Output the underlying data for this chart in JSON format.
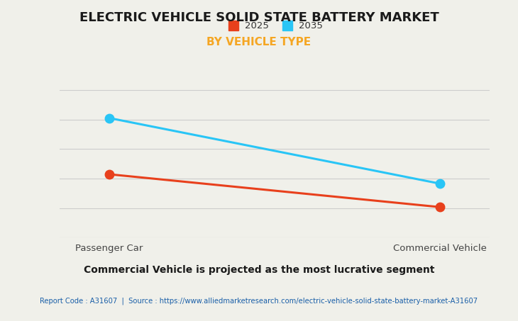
{
  "title": "ELECTRIC VEHICLE SOLID STATE BATTERY MARKET",
  "subtitle": "BY VEHICLE TYPE",
  "categories": [
    "Passenger Car",
    "Commercial Vehicle"
  ],
  "series": [
    {
      "label": "2025",
      "color": "#e8401c",
      "values": [
        0.72,
        0.58
      ]
    },
    {
      "label": "2035",
      "color": "#29c5f6",
      "values": [
        0.96,
        0.68
      ]
    }
  ],
  "ylim": [
    0.45,
    1.08
  ],
  "background_color": "#f0f0ea",
  "grid_color": "#cccccc",
  "title_fontsize": 13,
  "subtitle_fontsize": 11,
  "subtitle_color": "#f5a623",
  "footer_text": "Commercial Vehicle is projected as the most lucrative segment",
  "report_text": "Report Code : A31607  |  Source : https://www.alliedmarketresearch.com/electric-vehicle-solid-state-battery-market-A31607",
  "report_color": "#1a5fa8",
  "marker_size": 9,
  "line_width": 2.2,
  "legend_fontsize": 9.5,
  "xtick_fontsize": 9.5
}
